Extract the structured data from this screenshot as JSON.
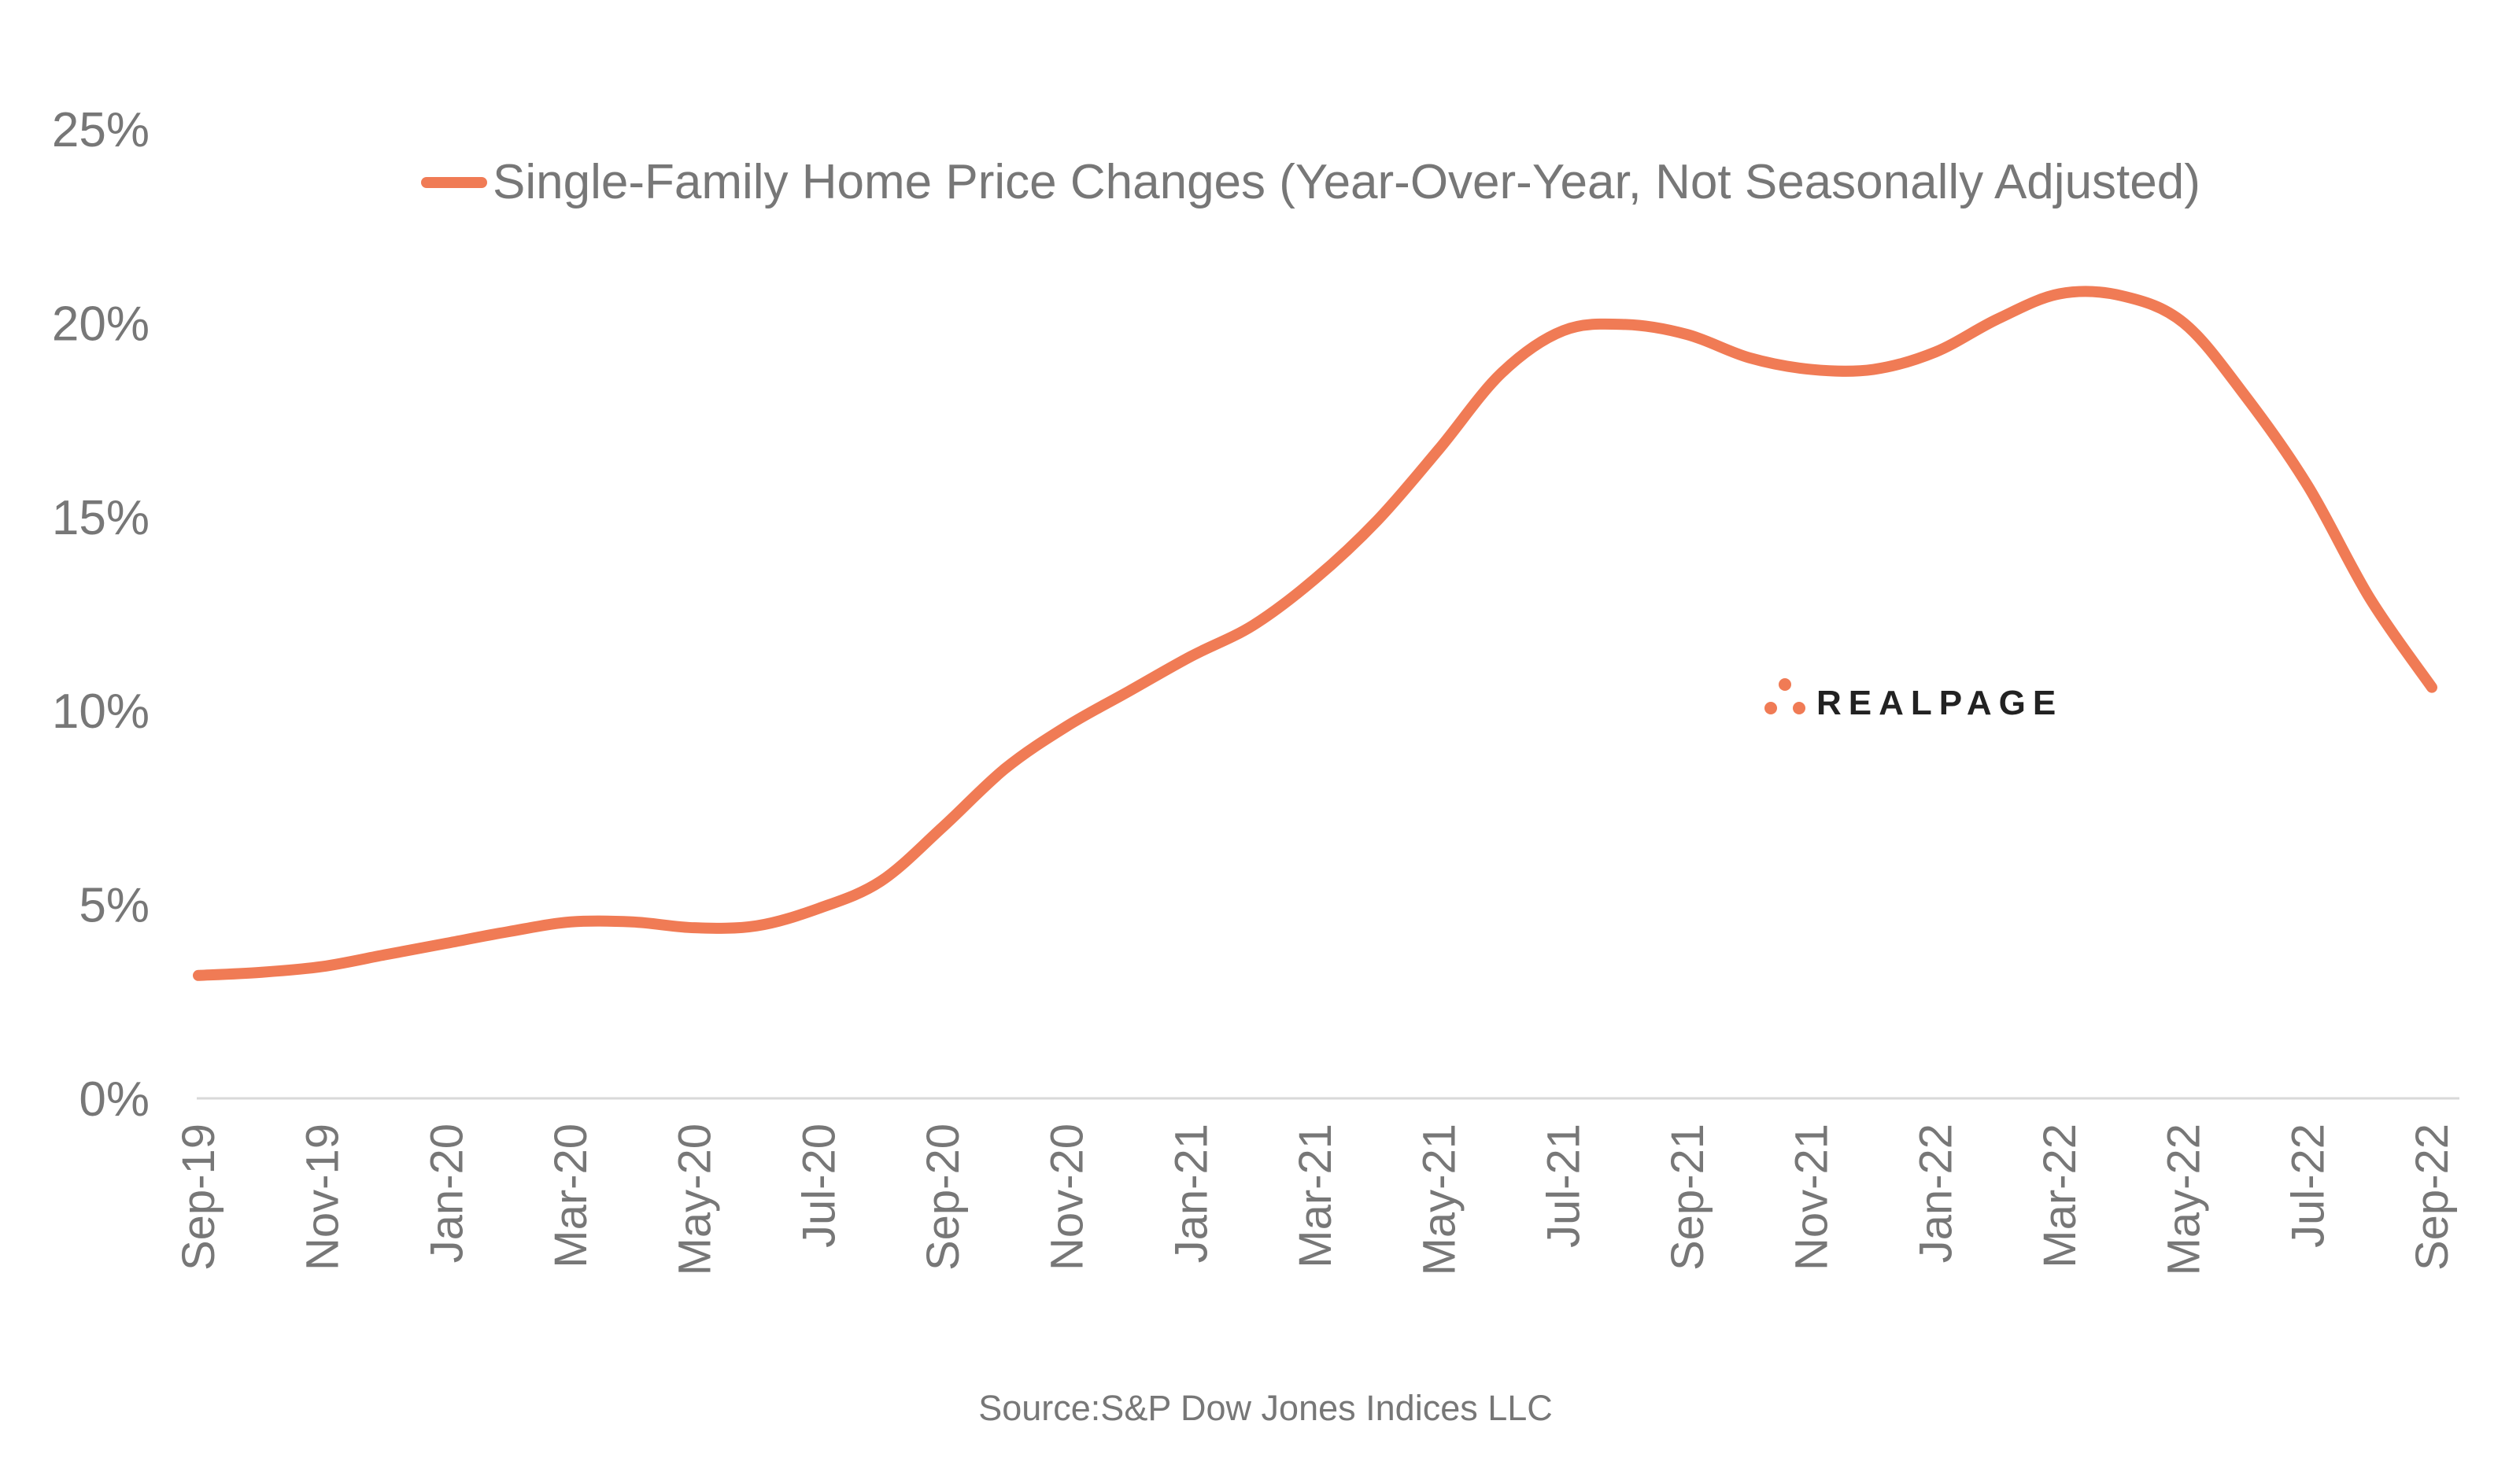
{
  "chart_data": {
    "type": "line",
    "title": "",
    "legend": {
      "label": "Single-Family Home Price Changes (Year-Over-Year, Not Seasonally Adjusted)",
      "placement": "top-center"
    },
    "xlabel": "",
    "ylabel": "",
    "ylim": [
      0,
      25
    ],
    "y_ticks": [
      0,
      5,
      10,
      15,
      20,
      25
    ],
    "y_tick_labels": [
      "0%",
      "5%",
      "10%",
      "15%",
      "20%",
      "25%"
    ],
    "x": [
      "Sep-19",
      "Oct-19",
      "Nov-19",
      "Dec-19",
      "Jan-20",
      "Feb-20",
      "Mar-20",
      "Apr-20",
      "May-20",
      "Jun-20",
      "Jul-20",
      "Aug-20",
      "Sep-20",
      "Oct-20",
      "Nov-20",
      "Dec-20",
      "Jan-21",
      "Feb-21",
      "Mar-21",
      "Apr-21",
      "May-21",
      "Jun-21",
      "Jul-21",
      "Aug-21",
      "Sep-21",
      "Oct-21",
      "Nov-21",
      "Dec-21",
      "Jan-22",
      "Feb-22",
      "Mar-22",
      "Apr-22",
      "May-22",
      "Jun-22",
      "Jul-22",
      "Aug-22",
      "Sep-22"
    ],
    "x_tick_labels": [
      "Sep-19",
      "Nov-19",
      "Jan-20",
      "Mar-20",
      "May-20",
      "Jul-20",
      "Sep-20",
      "Nov-20",
      "Jan-21",
      "Mar-21",
      "May-21",
      "Jul-21",
      "Sep-21",
      "Nov-21",
      "Jan-22",
      "Mar-22",
      "May-22",
      "Jul-22",
      "Sep-22"
    ],
    "series": [
      {
        "name": "Single-Family Home Price Changes (Year-Over-Year, Not Seasonally Adjusted)",
        "color": "#F07B55",
        "values": [
          3.17,
          3.25,
          3.4,
          3.7,
          4.0,
          4.3,
          4.55,
          4.55,
          4.4,
          4.45,
          4.9,
          5.6,
          7.0,
          8.5,
          9.6,
          10.5,
          11.4,
          12.2,
          13.4,
          14.9,
          16.75,
          18.7,
          19.8,
          19.96,
          19.7,
          19.1,
          18.8,
          18.8,
          19.25,
          20.1,
          20.75,
          20.7,
          20.0,
          18.1,
          15.8,
          12.9,
          10.6
        ]
      }
    ],
    "grid": false,
    "source": "Source:S&P Dow Jones Indices LLC"
  },
  "logo": {
    "text": "REALPAGE",
    "color": "#F07B55"
  }
}
